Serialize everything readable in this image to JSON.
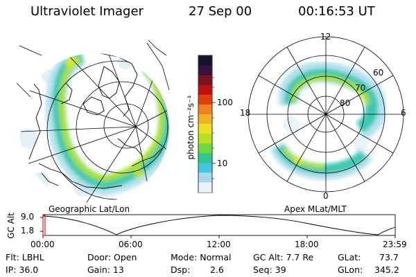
{
  "header": {
    "instrument": "Ultraviolet Imager",
    "date": "27 Sep 00",
    "time": "00:16:53 UT"
  },
  "colorbar": {
    "ticks": [
      "100",
      "10"
    ],
    "unit_label": "photon cm⁻²s⁻¹",
    "colors": [
      "#1a1030",
      "#3a1040",
      "#7a1020",
      "#c01010",
      "#e04010",
      "#f08020",
      "#f0b020",
      "#e8e020",
      "#b8e020",
      "#70d840",
      "#30c890",
      "#40c8e0",
      "#a8d8f0",
      "#e8f0f8"
    ]
  },
  "left_panel": {
    "caption": "Geographic Lat/Lon"
  },
  "right_panel": {
    "caption": "Apex MLat/MLT",
    "mlt_labels": {
      "top": "12",
      "left": "18",
      "right": "6",
      "bottom": "0"
    },
    "lat_labels": [
      "60",
      "70",
      "80"
    ]
  },
  "altitude_track": {
    "axis_label": "GC Alt",
    "y_ticks": [
      "9.0",
      "1.8"
    ],
    "x_ticks": [
      "00:00",
      "06:00",
      "12:00",
      "18:00",
      "23:59"
    ],
    "marker_color": "#e02020"
  },
  "info": {
    "flt": "Flt: LBHL",
    "ip": "IP: 36.0",
    "door": "Door: Open",
    "gain": "Gain: 13",
    "mode": "Mode: Normal",
    "dsp_label": "Dsp:",
    "dsp_value": "2.6",
    "gc_alt": "GC Alt: 7.7 Re",
    "seq": "Seq: 39",
    "glat_label": "GLat:",
    "glat_value": "73.7",
    "glon_label": "GLon:",
    "glon_value": "345.2"
  }
}
